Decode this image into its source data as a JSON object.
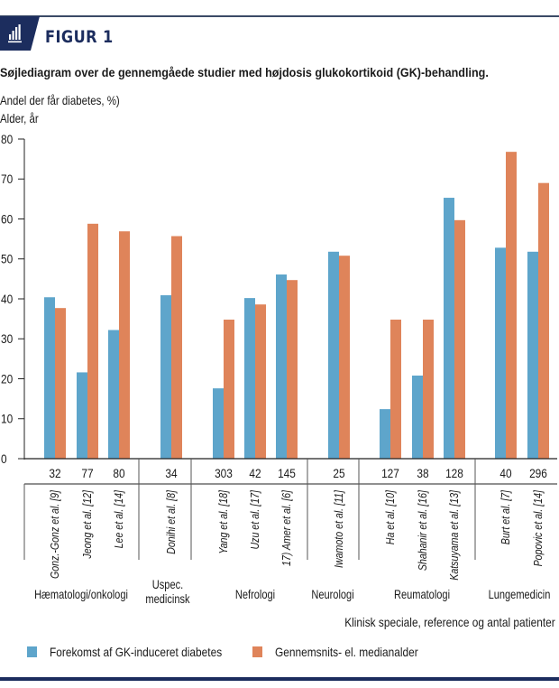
{
  "figure": {
    "label": "FIGUR 1",
    "icon": "bar-chart-icon",
    "subtitle": "Søjlediagram over de gennemgåede studier med højdosis glukokortikoid (GK)-behandling.",
    "accent_color": "#1c2d5e"
  },
  "chart_data": {
    "type": "bar",
    "title": "Søjlediagram over de gennemgåede studier med højdosis glukokortikoid (GK)-behandling.",
    "ylabel_lines": [
      "Andel  der får diabetes, %)",
      "Alder, år"
    ],
    "xlabel": "Klinisk speciale, reference og antal patienter",
    "ylim": [
      0,
      80
    ],
    "yticks": [
      0,
      10,
      20,
      30,
      40,
      50,
      60,
      70,
      80
    ],
    "grid": false,
    "legend_position": "bottom-left",
    "categories": [
      {
        "ref": "Gonz.-Gonz et al. [9]",
        "n": "32",
        "group": 0
      },
      {
        "ref": "Jeong et al. [12]",
        "n": "77",
        "group": 0
      },
      {
        "ref": "Lee et al. [14]",
        "n": "80",
        "group": 0
      },
      {
        "ref": "Donihi et al. [8]",
        "n": "34",
        "group": 1
      },
      {
        "ref": "Yang et al. [18]",
        "n": "303",
        "group": 2
      },
      {
        "ref": "Uzu et al. [17]",
        "n": "42",
        "group": 2
      },
      {
        "ref": "17) Amer et al. [6]",
        "n": "145",
        "group": 2
      },
      {
        "ref": "Iwamoto et al. [11]",
        "n": "25",
        "group": 3
      },
      {
        "ref": "Ha et al. [10]",
        "n": "127",
        "group": 4
      },
      {
        "ref": "Shahanir et al. [16]",
        "n": "38",
        "group": 4
      },
      {
        "ref": "Katsuyama et al. [13]",
        "n": "128",
        "group": 4
      },
      {
        "ref": "Burt et al. [7]",
        "n": "40",
        "group": 5
      },
      {
        "ref": "Popovic et al. [14]",
        "n": "296",
        "group": 5
      }
    ],
    "groups": [
      {
        "label": [
          "Hæmatologi/onkologi"
        ]
      },
      {
        "label": [
          "Uspec.",
          "medicinsk"
        ]
      },
      {
        "label": [
          "Nefrologi"
        ]
      },
      {
        "label": [
          "Neurologi"
        ]
      },
      {
        "label": [
          "Reumatologi"
        ]
      },
      {
        "label": [
          "Lungemedicin"
        ]
      }
    ],
    "series": [
      {
        "name": "Forekomst af GK-induceret diabetes",
        "color": "#5ea5cb",
        "values": [
          40.4,
          21.6,
          32.2,
          40.9,
          17.6,
          40.2,
          46.1,
          51.8,
          12.4,
          20.8,
          65.3,
          52.8,
          51.8
        ]
      },
      {
        "name": "Gennemsnits- el. medianalder",
        "color": "#df845a",
        "values": [
          37.7,
          58.8,
          56.9,
          55.7,
          34.8,
          38.6,
          44.7,
          50.8,
          34.8,
          34.8,
          59.7,
          76.8,
          69.0
        ]
      }
    ]
  }
}
